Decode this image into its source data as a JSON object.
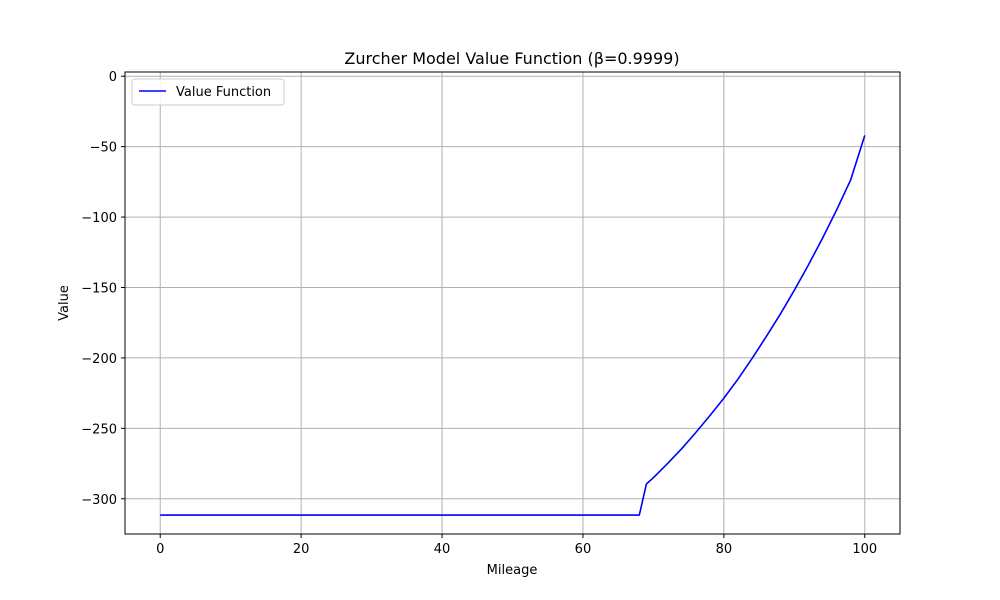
{
  "chart_data": {
    "type": "line",
    "title": "Zurcher Model Value Function (β=0.9999)",
    "xlabel": "Mileage",
    "ylabel": "Value",
    "xlim": [
      -5,
      105
    ],
    "ylim": [
      -325,
      3
    ],
    "xticks": [
      0,
      20,
      40,
      60,
      80,
      100
    ],
    "yticks": [
      0,
      -50,
      -100,
      -150,
      -200,
      -250,
      -300
    ],
    "xtick_labels": [
      "0",
      "20",
      "40",
      "60",
      "80",
      "100"
    ],
    "ytick_labels": [
      "0",
      "−50",
      "−100",
      "−150",
      "−200",
      "−250",
      "−300"
    ],
    "grid": true,
    "legend_position": "top-left",
    "series": [
      {
        "name": "Value Function",
        "color": "#0000ff",
        "x": [
          0,
          10,
          20,
          30,
          40,
          50,
          60,
          68,
          69,
          70,
          72,
          74,
          76,
          78,
          80,
          82,
          84,
          86,
          88,
          90,
          92,
          94,
          96,
          98,
          100
        ],
        "y": [
          -311.6,
          -311.6,
          -311.6,
          -311.6,
          -311.6,
          -311.6,
          -311.6,
          -311.6,
          -289.5,
          -285.0,
          -275.0,
          -264.5,
          -253.0,
          -241.0,
          -228.5,
          -215.0,
          -200.5,
          -185.0,
          -169.0,
          -152.0,
          -134.0,
          -115.0,
          -95.0,
          -73.5,
          -42.0
        ]
      }
    ]
  }
}
